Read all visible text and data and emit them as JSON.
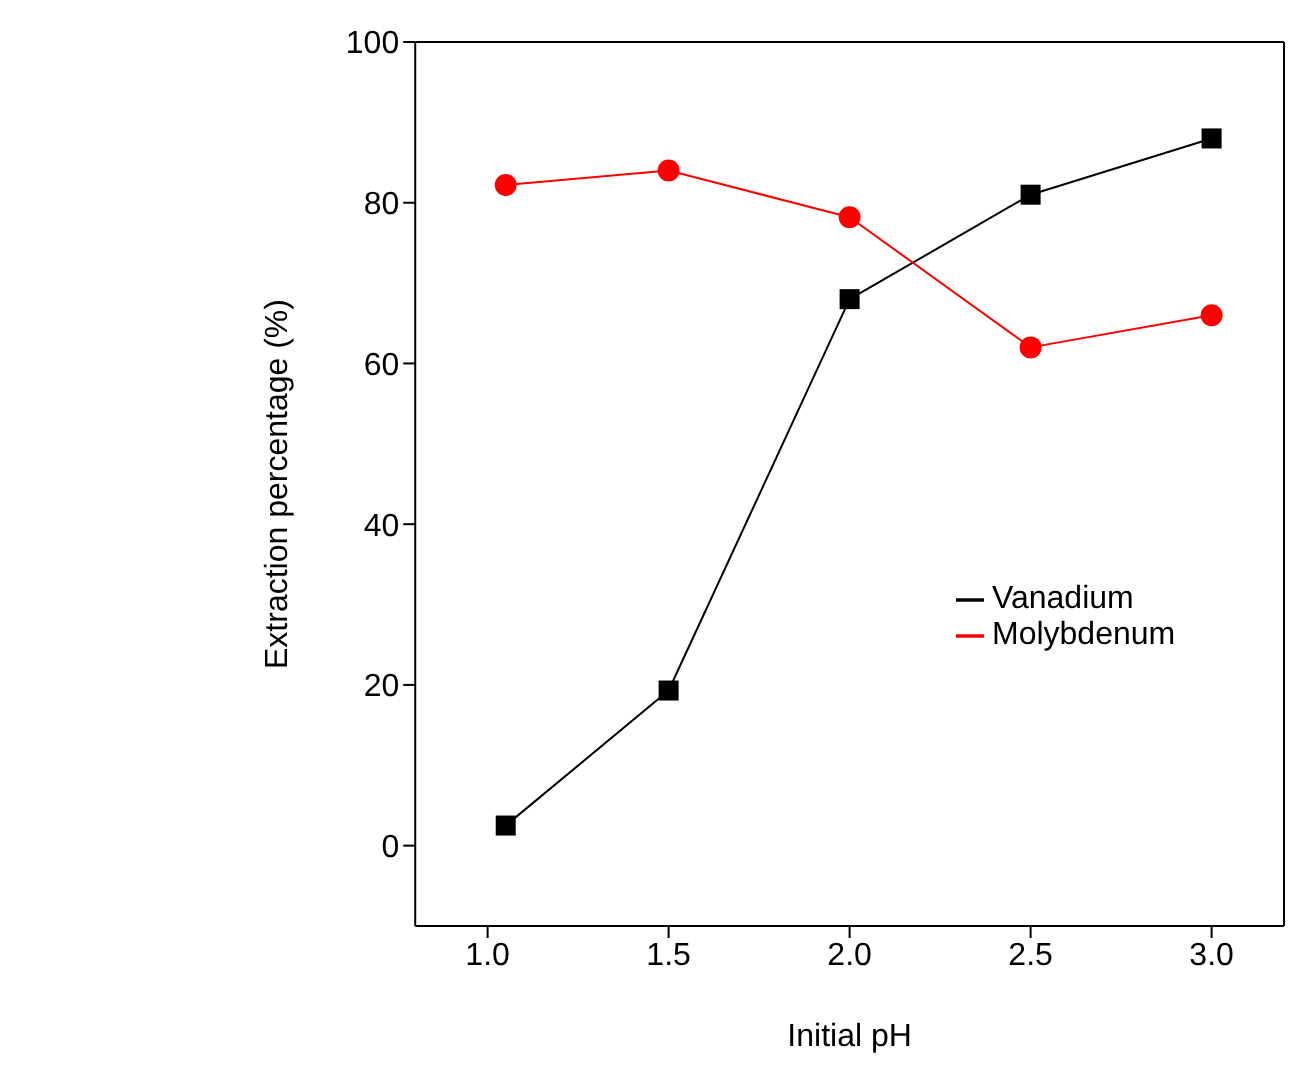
{
  "chart_data": {
    "type": "line",
    "xlabel": "Initial pH",
    "ylabel": "Extraction percentage (%)",
    "x": [
      1.05,
      1.5,
      2.0,
      2.5,
      3.0
    ],
    "series": [
      {
        "name": "Vanadium",
        "color": "#000000",
        "marker": "square",
        "values": [
          2.5,
          19.3,
          68,
          81,
          88
        ]
      },
      {
        "name": "Molybdenum",
        "color": "#ff0000",
        "marker": "circle",
        "values": [
          82.2,
          84,
          78.2,
          62,
          66
        ]
      }
    ],
    "xlim": [
      0.8,
      3.2
    ],
    "xticks": [
      {
        "value": 1.0,
        "label": "1.0"
      },
      {
        "value": 1.5,
        "label": "1.5"
      },
      {
        "value": 2.0,
        "label": "2.0"
      },
      {
        "value": 2.5,
        "label": "2.5"
      },
      {
        "value": 3.0,
        "label": "3.0"
      }
    ],
    "ylim": [
      -10,
      100
    ],
    "yticks": [
      0,
      20,
      40,
      60,
      80,
      100
    ],
    "grid": false,
    "legend": "center right",
    "line_style": "solid"
  }
}
